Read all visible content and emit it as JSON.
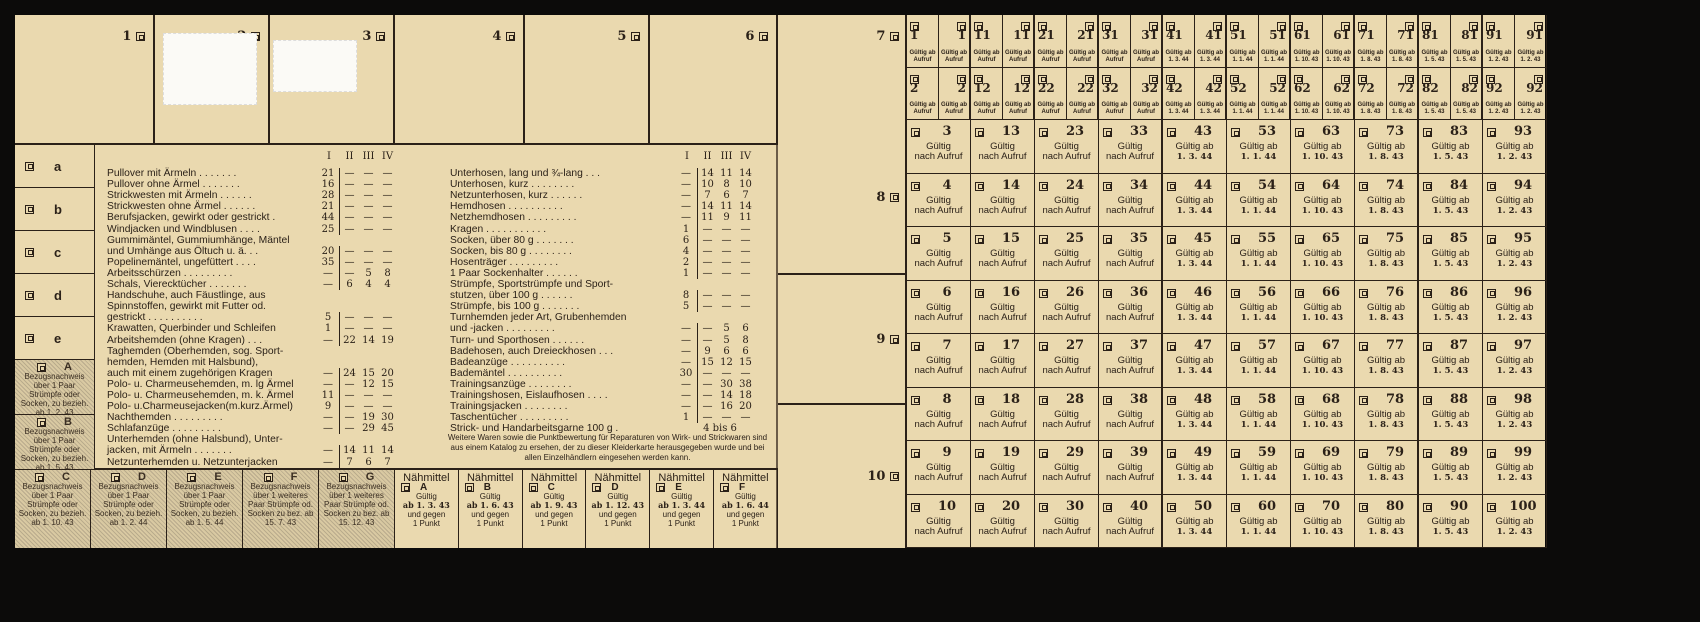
{
  "colors": {
    "paper": "#ead9af",
    "ink": "#2b2118",
    "background": "#0c0b0a"
  },
  "top_boxes": [
    "1",
    "2",
    "3",
    "4",
    "5",
    "6"
  ],
  "letters": [
    "a",
    "b",
    "c",
    "d",
    "e"
  ],
  "bezug_left": [
    {
      "letter": "A",
      "text": "Bezugsnachweis über 1 Paar Strümpfe oder Socken, zu bezieh. ab 1. 2. 43"
    },
    {
      "letter": "B",
      "text": "Bezugsnachweis über 1 Paar Strümpfe oder Socken, zu bezieh. ab 1. 5. 43"
    }
  ],
  "bezug_bottom": [
    {
      "letter": "C",
      "text": "Bezugsnachweis über 1 Paar Strümpfe oder Socken, zu bezieh. ab 1. 10. 43"
    },
    {
      "letter": "D",
      "text": "Bezugsnachweis über 1 Paar Strümpfe oder Socken, zu bezieh. ab 1. 2. 44"
    },
    {
      "letter": "E",
      "text": "Bezugsnachweis über 1 Paar Strümpfe oder Socken, zu bezieh. ab 1. 5. 44"
    },
    {
      "letter": "F",
      "text": "Bezugsnachweis über 1 weiteres Paar Strümpfe od. Socken zu bez. ab 15. 7. 43"
    },
    {
      "letter": "G",
      "text": "Bezugsnachweis über 1 weiteres Paar Strümpfe od. Socken zu bez. ab 15. 12. 43"
    }
  ],
  "table_headers": [
    "I",
    "II",
    "III",
    "IV"
  ],
  "table_left": [
    [
      "Pullover mit Ärmeln . . . . . . .",
      "21",
      "—",
      "—",
      "—"
    ],
    [
      "Pullover ohne Ärmel . . . . . . .",
      "16",
      "—",
      "—",
      "—"
    ],
    [
      "Strickwesten mit Ärmeln . . . . . .",
      "28",
      "—",
      "—",
      "—"
    ],
    [
      "Strickwesten ohne Ärmel . . . . . .",
      "21",
      "—",
      "—",
      "—"
    ],
    [
      "Berufsjacken, gewirkt oder gestrickt .",
      "44",
      "—",
      "—",
      "—"
    ],
    [
      "Windjacken und Windblusen . . . .",
      "25",
      "—",
      "—",
      "—"
    ],
    [
      "Gummimäntel, Gummiumhänge, Mäntel\n   und Umhänge aus Öltuch u. ä. . .",
      "20",
      "—",
      "—",
      "—"
    ],
    [
      "Popelinemäntel, ungefüttert . . . .",
      "35",
      "—",
      "—",
      "—"
    ],
    [
      "Arbeitsschürzen . . . . . . . . .",
      "—",
      "—",
      "5",
      "8"
    ],
    [
      "Schals, Vierecktücher . . . . . . .",
      "—",
      "6",
      "4",
      "4"
    ],
    [
      "Handschuhe, auch Fäustlinge, aus\n   Spinnstoffen, gewirkt mit Futter od.\n   gestrickt . . . . . . . . . .",
      "5",
      "—",
      "—",
      "—"
    ],
    [
      "Krawatten, Querbinder und Schleifen",
      "1",
      "—",
      "—",
      "—"
    ],
    [
      "Arbeitshemden (ohne Kragen) . . .",
      "—",
      "22",
      "14",
      "19"
    ],
    [
      "Taghemden (Oberhemden, sog. Sport-\n   hemden, Hemden mit Halsbund),\n   auch mit einem zugehörigen Kragen",
      "—",
      "24",
      "15",
      "20"
    ],
    [
      "Polo- u. Charmeusehemden, m. lg Ärmel",
      "—",
      "—",
      "12",
      "15"
    ],
    [
      "Polo- u. Charmeusehemden, m. k. Ärmel",
      "11",
      "—",
      "—",
      "—"
    ],
    [
      "Polo- u.Charmeusejacken(m.kurz.Ärmel)",
      "9",
      "—",
      "—",
      "—"
    ],
    [
      "Nachthemden . . . . . . . . .",
      "—",
      "—",
      "19",
      "30"
    ],
    [
      "Schlafanzüge . . . . . . . . .",
      "—",
      "—",
      "29",
      "45"
    ],
    [
      "Unterhemden (ohne Halsbund), Unter-\n   jacken, mit Ärmeln . . . . . . .",
      "—",
      "14",
      "11",
      "14"
    ],
    [
      "Netzunterhemden u. Netzunterjacken",
      "—",
      "7",
      "6",
      "7"
    ]
  ],
  "table_right": [
    [
      "Unterhosen, lang und ¾-lang . . .",
      "—",
      "14",
      "11",
      "14"
    ],
    [
      "Unterhosen, kurz . . . . . . . .",
      "—",
      "10",
      "8",
      "10"
    ],
    [
      "Netzunterhosen, kurz . . . . . .",
      "—",
      "7",
      "6",
      "7"
    ],
    [
      "Hemdhosen . . . . . . . . . .",
      "—",
      "14",
      "11",
      "14"
    ],
    [
      "Netzhemdhosen . . . . . . . . .",
      "—",
      "11",
      "9",
      "11"
    ],
    [
      "Kragen . . . . . . . . . . .",
      "1",
      "—",
      "—",
      "—"
    ],
    [
      "Socken, über 80 g . . . . . . .",
      "6",
      "—",
      "—",
      "—"
    ],
    [
      "Socken, bis 80 g . . . . . . . .",
      "4",
      "—",
      "—",
      "—"
    ],
    [
      "Hosenträger . . . . . . . . .",
      "2",
      "—",
      "—",
      "—"
    ],
    [
      "1 Paar Sockenhalter . . . . . .",
      "1",
      "—",
      "—",
      "—"
    ],
    [
      "Strümpfe, Sportstrümpfe und Sport-\n   stutzen, über 100 g . . . . . .",
      "8",
      "—",
      "—",
      "—"
    ],
    [
      "Strümpfe, bis 100 g . . . . . . .",
      "5",
      "—",
      "—",
      "—"
    ],
    [
      "Turnhemden jeder Art, Grubenhemden\n   und -jacken . . . . . . . . .",
      "—",
      "—",
      "5",
      "6"
    ],
    [
      "Turn- und Sporthosen . . . . . .",
      "—",
      "—",
      "5",
      "8"
    ],
    [
      "Badehosen, auch Dreieckhosen . . .",
      "—",
      "9",
      "6",
      "6"
    ],
    [
      "Badeanzüge . . . . . . . . . .",
      "—",
      "15",
      "12",
      "15"
    ],
    [
      "Bademäntel . . . . . . . . . .",
      "30",
      "—",
      "—",
      "—"
    ],
    [
      "Trainingsanzüge . . . . . . . .",
      "—",
      "—",
      "30",
      "38"
    ],
    [
      "Trainingshosen, Eislaufhosen . . . .",
      "—",
      "—",
      "14",
      "18"
    ],
    [
      "Trainingsjacken . . . . . . . .",
      "—",
      "—",
      "16",
      "20"
    ],
    [
      "Taschentücher . . . . . . . . .",
      "1",
      "—",
      "—",
      "—"
    ]
  ],
  "table_right_last": {
    "name": "Strick- und Handarbeitsgarne 100 g .",
    "value": "4 bis 6"
  },
  "note": "Weitere Waren sowie die Punktbewertung für Reparaturen von Wirk- und Strickwaren sind aus einem Katalog zu ersehen, der zu dieser Kleiderkarte herausgegeben wurde und bei allen Einzelhändlern eingesehen werden kann.",
  "naehmittel": [
    {
      "title": "Nähmittel",
      "letter": "A",
      "valid": "Gültig",
      "date": "ab 1. 3. 43",
      "extra": "und gegen\n1 Punkt"
    },
    {
      "title": "Nähmittel",
      "letter": "B",
      "valid": "Gültig",
      "date": "ab 1. 6. 43",
      "extra": "und gegen\n1 Punkt"
    },
    {
      "title": "Nähmittel",
      "letter": "C",
      "valid": "Gültig",
      "date": "ab 1. 9. 43",
      "extra": "und gegen\n1 Punkt"
    },
    {
      "title": "Nähmittel",
      "letter": "D",
      "valid": "Gültig",
      "date": "ab 1. 12. 43",
      "extra": "und gegen\n1 Punkt"
    },
    {
      "title": "Nähmittel",
      "letter": "E",
      "valid": "Gültig",
      "date": "ab 1. 3. 44",
      "extra": "und gegen\n1 Punkt"
    },
    {
      "title": "Nähmittel",
      "letter": "F",
      "valid": "Gültig",
      "date": "ab 1. 6. 44",
      "extra": "und gegen\n1 Punkt"
    }
  ],
  "side_labels": [
    "7",
    "8",
    "9",
    "10"
  ],
  "coupon_columns": [
    {
      "top": [
        "1",
        "2"
      ],
      "top_valid": "Gültig ab\nAufruf",
      "main": [
        "3",
        "4",
        "5",
        "6",
        "7",
        "8",
        "9",
        "10"
      ],
      "valid1": "Gültig",
      "valid2": "nach Aufruf"
    },
    {
      "top": [
        "11",
        "12"
      ],
      "top_valid": "Gültig ab\nAufruf",
      "main": [
        "13",
        "14",
        "15",
        "16",
        "17",
        "18",
        "19",
        "20"
      ],
      "valid1": "Gültig",
      "valid2": "nach Aufruf"
    },
    {
      "top": [
        "21",
        "22"
      ],
      "top_valid": "Gültig ab\nAufruf",
      "main": [
        "23",
        "24",
        "25",
        "26",
        "27",
        "28",
        "29",
        "30"
      ],
      "valid1": "Gültig",
      "valid2": "nach Aufruf"
    },
    {
      "top": [
        "31",
        "32"
      ],
      "top_valid": "Gültig ab\nAufruf",
      "main": [
        "33",
        "34",
        "35",
        "36",
        "37",
        "38",
        "39",
        "40"
      ],
      "valid1": "Gültig",
      "valid2": "nach Aufruf"
    },
    {
      "top": [
        "41",
        "42"
      ],
      "top_valid": "Gültig ab\n1. 3. 44",
      "main": [
        "43",
        "44",
        "45",
        "46",
        "47",
        "48",
        "49",
        "50"
      ],
      "valid1": "Gültig ab",
      "valid2": "1. 3. 44"
    },
    {
      "top": [
        "51",
        "52"
      ],
      "top_valid": "Gültig ab\n1. 1. 44",
      "main": [
        "53",
        "54",
        "55",
        "56",
        "57",
        "58",
        "59",
        "60"
      ],
      "valid1": "Gültig ab",
      "valid2": "1. 1. 44"
    },
    {
      "top": [
        "61",
        "62"
      ],
      "top_valid": "Gültig ab\n1. 10. 43",
      "main": [
        "63",
        "64",
        "65",
        "66",
        "67",
        "68",
        "69",
        "70"
      ],
      "valid1": "Gültig ab",
      "valid2": "1. 10. 43"
    },
    {
      "top": [
        "71",
        "72"
      ],
      "top_valid": "Gültig ab\n1. 8. 43",
      "main": [
        "73",
        "74",
        "75",
        "76",
        "77",
        "78",
        "79",
        "80"
      ],
      "valid1": "Gültig ab",
      "valid2": "1. 8. 43"
    },
    {
      "top": [
        "81",
        "82"
      ],
      "top_valid": "Gültig ab\n1. 5. 43",
      "main": [
        "83",
        "84",
        "85",
        "86",
        "87",
        "88",
        "89",
        "90"
      ],
      "valid1": "Gültig ab",
      "valid2": "1. 5. 43"
    },
    {
      "top": [
        "91",
        "92"
      ],
      "top_valid": "Gültig ab\n1. 2. 43",
      "main": [
        "93",
        "94",
        "95",
        "96",
        "97",
        "98",
        "99",
        "100"
      ],
      "valid1": "Gültig ab",
      "valid2": "1. 2. 43"
    }
  ]
}
